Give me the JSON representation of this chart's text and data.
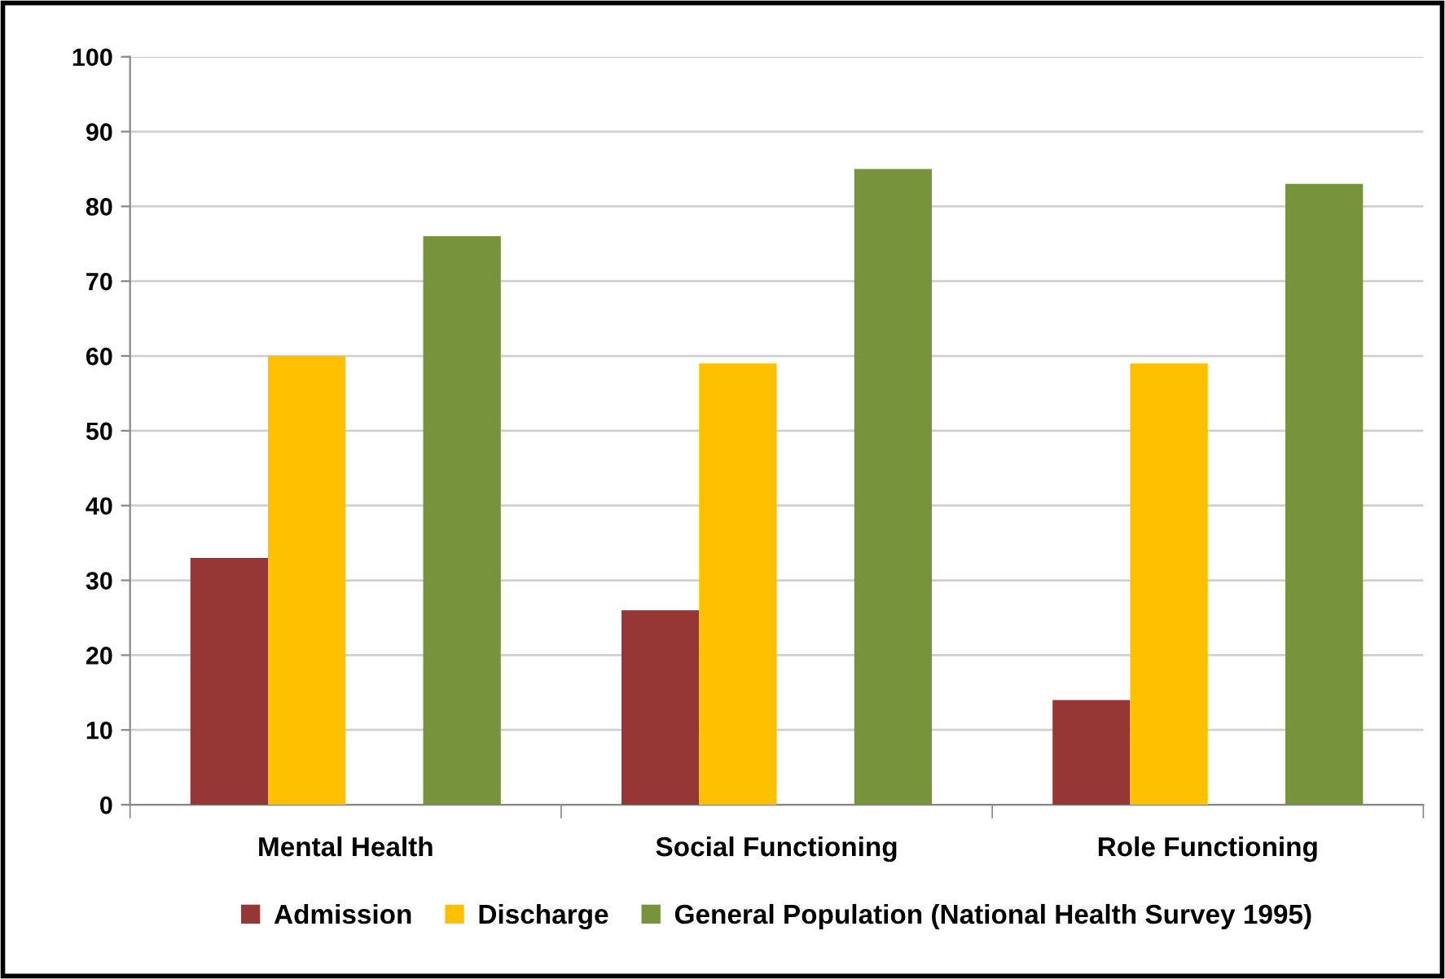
{
  "chart_data": {
    "type": "bar",
    "categories": [
      "Mental Health",
      "Social Functioning",
      "Role Functioning"
    ],
    "series": [
      {
        "name": "Admission",
        "color": "#953735",
        "values": [
          33,
          26,
          14
        ]
      },
      {
        "name": "Discharge",
        "color": "#ffc000",
        "values": [
          60,
          59,
          59
        ]
      },
      {
        "values": [
          null,
          null,
          null
        ]
      },
      {
        "name": "General Population (National Health Survey 1995)",
        "color": "#77933c",
        "values": [
          76,
          85,
          83
        ]
      }
    ],
    "ylim": [
      0,
      100
    ],
    "yticks": [
      0,
      10,
      20,
      30,
      40,
      50,
      60,
      70,
      80,
      90,
      100
    ],
    "grid": "y",
    "legend": "bottom"
  }
}
